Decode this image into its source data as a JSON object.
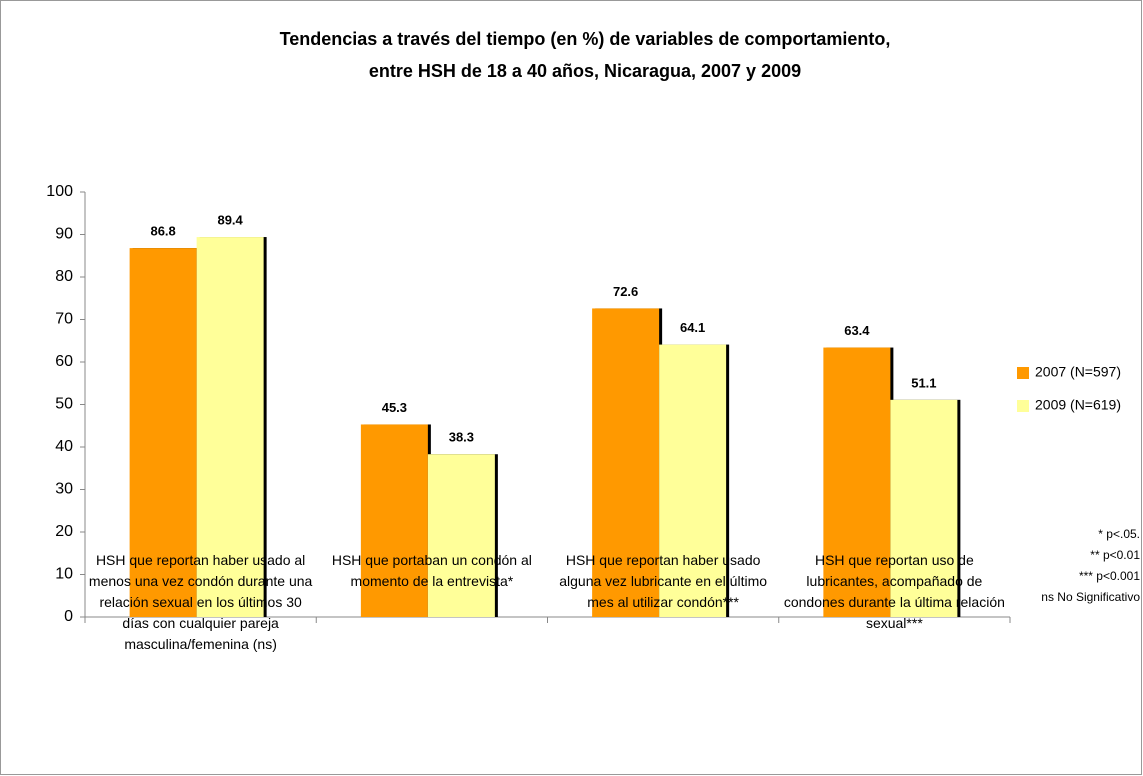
{
  "chart_data": {
    "type": "bar",
    "title": [
      "Tendencias a través del tiempo (en %) de variables de comportamiento,",
      "entre HSH de 18 a 40 años, Nicaragua, 2007 y 2009"
    ],
    "categories": [
      "HSH que reportan haber usado al menos una vez condón durante una relación sexual en los últimos 30 días con cualquier pareja masculina/femenina (ns)",
      "HSH que portaban un condón al momento de la entrevista*",
      "HSH que reportan haber usado alguna vez lubricante en el último mes al utilizar condón***",
      "HSH que reportan uso de lubricantes, acompañado de condones durante la última relación sexual***"
    ],
    "series": [
      {
        "name": "2007 (N=597)",
        "color": "#ff9900",
        "values": [
          86.8,
          45.3,
          72.6,
          63.4
        ]
      },
      {
        "name": "2009 (N=619)",
        "color": "#ffff99",
        "values": [
          89.4,
          38.3,
          64.1,
          51.1
        ]
      }
    ],
    "ylim": [
      0,
      100
    ],
    "yticks": [
      0,
      10,
      20,
      30,
      40,
      50,
      60,
      70,
      80,
      90,
      100
    ],
    "legend": "right",
    "annotations": [
      "* p<.05.",
      "** p<0.01",
      "*** p<0.001",
      "ns No Significativo"
    ]
  }
}
